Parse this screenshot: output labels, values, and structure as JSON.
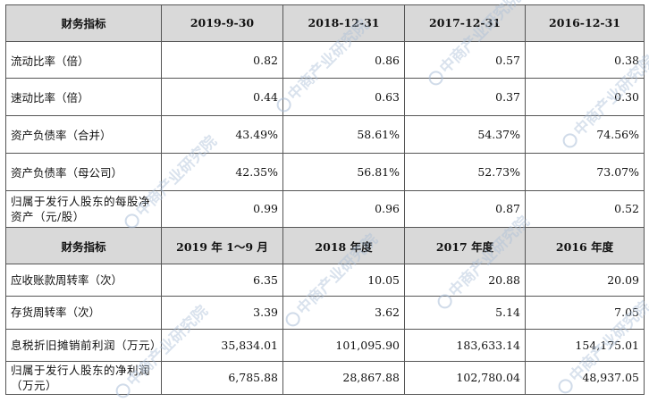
{
  "header1": [
    "财务指标",
    "2019-9-30",
    "2018-12-31",
    "2017-12-31",
    "2016-12-31"
  ],
  "rows1": [
    {
      "label": "流动比率（倍）",
      "values": [
        "0.82",
        "0.86",
        "0.57",
        "0.38"
      ]
    },
    {
      "label": "速动比率（倍）",
      "values": [
        "0.44",
        "0.63",
        "0.37",
        "0.30"
      ]
    },
    {
      "label": "资产负债率（合并）",
      "values": [
        "43.49%",
        "58.61%",
        "54.37%",
        "74.56%"
      ]
    },
    {
      "label": "资产负债率（母公司）",
      "values": [
        "42.35%",
        "56.81%",
        "52.73%",
        "73.07%"
      ]
    },
    {
      "label": "归属于发行人股东的每股净资产（元/股）",
      "values": [
        "0.99",
        "0.96",
        "0.87",
        "0.52"
      ]
    }
  ],
  "header2": [
    "财务指标",
    "2019 年 1～9 月",
    "2018 年度",
    "2017 年度",
    "2016 年度"
  ],
  "rows2": [
    {
      "label": "应收账款周转率（次）",
      "values": [
        "6.35",
        "10.05",
        "20.88",
        "20.09"
      ]
    },
    {
      "label": "存货周转率（次）",
      "values": [
        "3.39",
        "3.62",
        "5.14",
        "7.05"
      ]
    },
    {
      "label": "息税折旧摊销前利润（万元）",
      "values": [
        "35,834.01",
        "101,095.90",
        "183,633.14",
        "154,175.01"
      ]
    },
    {
      "label": "归属于发行人股东的净利润（万元）",
      "values": [
        "6,785.88",
        "28,867.88",
        "102,780.04",
        "48,937.05"
      ]
    }
  ],
  "watermark": "中商产业研究院"
}
